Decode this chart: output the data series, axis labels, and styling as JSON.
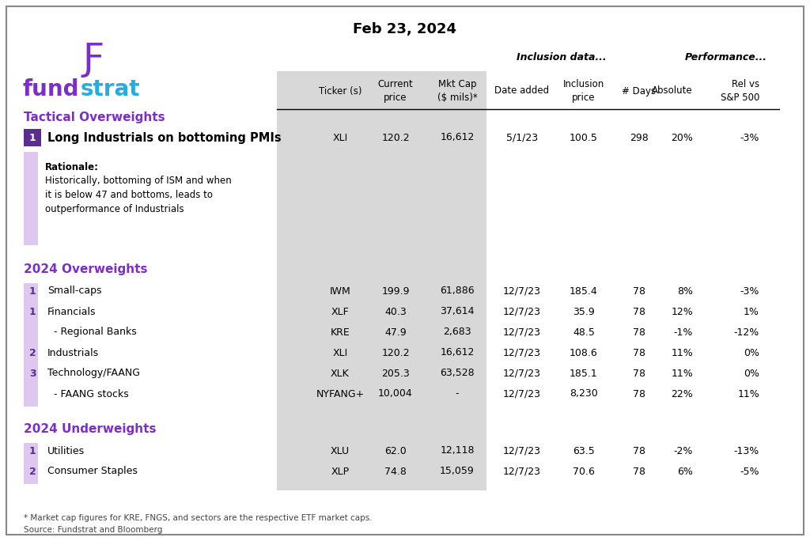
{
  "title": "Feb 23, 2024",
  "purple": "#7B2FC9",
  "cyan": "#29ABE2",
  "badge_purple": "#5B2D8E",
  "light_purple": "#DEC8F0",
  "gray_bg": "#D8D8D8",
  "footnote": "* Market cap figures for KRE, FNGS, and sectors are the respective ETF market caps.\nSource: Fundstrat and Bloomberg",
  "tactical_row": {
    "num": "1",
    "label": "Long Industrials on bottoming PMIs",
    "ticker": "XLI",
    "price": "120.2",
    "mktcap": "16,612",
    "date": "5/1/23",
    "inc_price": "100.5",
    "days": "298",
    "absolute": "20%",
    "rel": "-3%",
    "rationale_bold": "Rationale:",
    "rationale_text": "Historically, bottoming of ISM and when\nit is below 47 and bottoms, leads to\noutperformance of Industrials"
  },
  "overweight_rows": [
    {
      "num": "1",
      "label": "Small-caps",
      "indent": false,
      "ticker": "IWM",
      "price": "199.9",
      "mktcap": "61,886",
      "date": "12/7/23",
      "inc_price": "185.4",
      "days": "78",
      "absolute": "8%",
      "rel": "-3%"
    },
    {
      "num": "1",
      "label": "Financials",
      "indent": false,
      "ticker": "XLF",
      "price": "40.3",
      "mktcap": "37,614",
      "date": "12/7/23",
      "inc_price": "35.9",
      "days": "78",
      "absolute": "12%",
      "rel": "1%"
    },
    {
      "num": "",
      "label": "- Regional Banks",
      "indent": true,
      "ticker": "KRE",
      "price": "47.9",
      "mktcap": "2,683",
      "date": "12/7/23",
      "inc_price": "48.5",
      "days": "78",
      "absolute": "-1%",
      "rel": "-12%"
    },
    {
      "num": "2",
      "label": "Industrials",
      "indent": false,
      "ticker": "XLI",
      "price": "120.2",
      "mktcap": "16,612",
      "date": "12/7/23",
      "inc_price": "108.6",
      "days": "78",
      "absolute": "11%",
      "rel": "0%"
    },
    {
      "num": "3",
      "label": "Technology/FAANG",
      "indent": false,
      "ticker": "XLK",
      "price": "205.3",
      "mktcap": "63,528",
      "date": "12/7/23",
      "inc_price": "185.1",
      "days": "78",
      "absolute": "11%",
      "rel": "0%"
    },
    {
      "num": "",
      "label": "- FAANG stocks",
      "indent": true,
      "ticker": "NYFANG+",
      "price": "10,004",
      "mktcap": "-",
      "date": "12/7/23",
      "inc_price": "8,230",
      "days": "78",
      "absolute": "22%",
      "rel": "11%"
    }
  ],
  "underweight_rows": [
    {
      "num": "1",
      "label": "Utilities",
      "indent": false,
      "ticker": "XLU",
      "price": "62.0",
      "mktcap": "12,118",
      "date": "12/7/23",
      "inc_price": "63.5",
      "days": "78",
      "absolute": "-2%",
      "rel": "-13%"
    },
    {
      "num": "2",
      "label": "Consumer Staples",
      "indent": false,
      "ticker": "XLP",
      "price": "74.8",
      "mktcap": "15,059",
      "date": "12/7/23",
      "inc_price": "70.6",
      "days": "78",
      "absolute": "6%",
      "rel": "-5%"
    }
  ]
}
